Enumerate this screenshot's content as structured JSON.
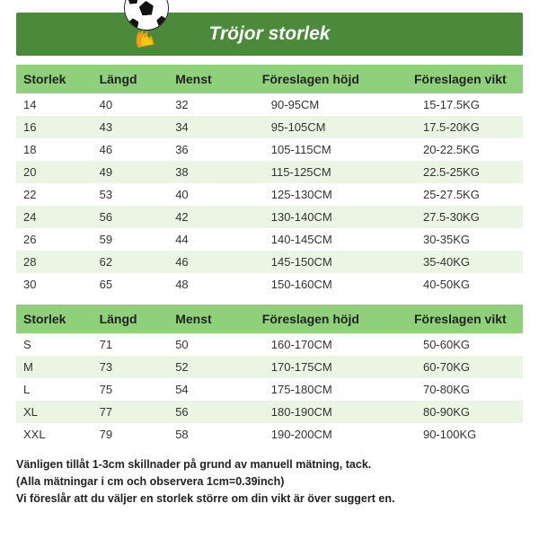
{
  "header": {
    "title": "Tröjor storlek"
  },
  "columns": [
    "Storlek",
    "Längd",
    "Menst",
    "Föreslagen höjd",
    "Föreslagen vikt"
  ],
  "styling": {
    "header_bar_bg": "#4a8a3a",
    "table_header_bg": "#8fd07a",
    "row_even_bg": "#eaf5e3",
    "row_odd_bg": "#ffffff",
    "page_bg": "#ffffff",
    "text_color": "#222222",
    "header_title_color": "#ffffff",
    "header_title_fontsize": 21,
    "th_fontsize": 14,
    "td_fontsize": 13,
    "footer_fontsize": 12.5,
    "flame_colors": [
      "#f39c12",
      "#f2c80f"
    ],
    "col_widths_pct": [
      15,
      15,
      15,
      30,
      25
    ]
  },
  "kids_table": {
    "rows": [
      [
        "14",
        "40",
        "32",
        "90-95CM",
        "15-17.5KG"
      ],
      [
        "16",
        "43",
        "34",
        "95-105CM",
        "17.5-20KG"
      ],
      [
        "18",
        "46",
        "36",
        "105-115CM",
        "20-22.5KG"
      ],
      [
        "20",
        "49",
        "38",
        "115-125CM",
        "22.5-25KG"
      ],
      [
        "22",
        "53",
        "40",
        "125-130CM",
        "25-27.5KG"
      ],
      [
        "24",
        "56",
        "42",
        "130-140CM",
        "27.5-30KG"
      ],
      [
        "26",
        "59",
        "44",
        "140-145CM",
        "30-35KG"
      ],
      [
        "28",
        "62",
        "46",
        "145-150CM",
        "35-40KG"
      ],
      [
        "30",
        "65",
        "48",
        "150-160CM",
        "40-50KG"
      ]
    ]
  },
  "adult_table": {
    "rows": [
      [
        "S",
        "71",
        "50",
        "160-170CM",
        "50-60KG"
      ],
      [
        "M",
        "73",
        "52",
        "170-175CM",
        "60-70KG"
      ],
      [
        "L",
        "75",
        "54",
        "175-180CM",
        "70-80KG"
      ],
      [
        "XL",
        "77",
        "56",
        "180-190CM",
        "80-90KG"
      ],
      [
        "XXL",
        "79",
        "58",
        "190-200CM",
        "90-100KG"
      ]
    ]
  },
  "footer": {
    "line1": "Vänligen tillåt 1-3cm skillnader på grund av manuell mätning, tack.",
    "line2": "(Alla mätningar i cm och observera 1cm=0.39inch)",
    "line3": "Vi föreslår att du väljer en storlek större om din vikt är över suggert en."
  }
}
